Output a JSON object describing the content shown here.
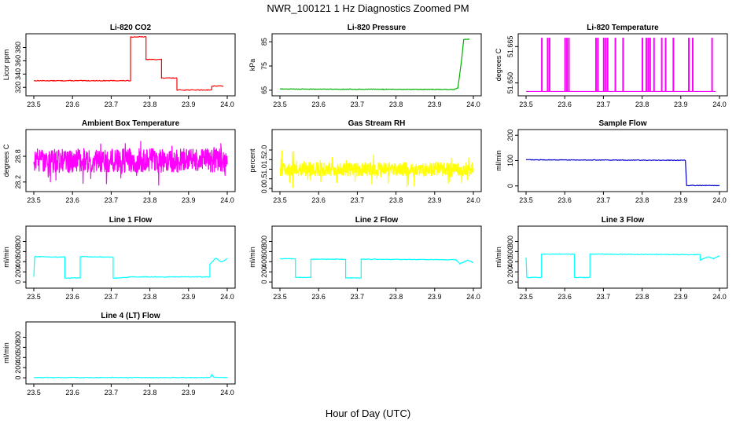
{
  "page": {
    "title": "NWR_100121  1 Hz Diagnostics Zoomed PM",
    "xlabel": "Hour of Day (UTC)"
  },
  "chart_data": [
    {
      "type": "line",
      "title": "Li-820 CO2",
      "ylabel": "Licor ppm",
      "color": "#ff0000",
      "xlim": [
        23.5,
        24.0
      ],
      "ylim": [
        312,
        396
      ],
      "yticks": [
        "320",
        "340",
        "360",
        "380"
      ],
      "xticks": [
        "23.5",
        "23.6",
        "23.7",
        "23.8",
        "23.9",
        "24.0"
      ],
      "xrange": [
        23.5,
        23.99
      ],
      "profile": [
        [
          23.5,
          330
        ],
        [
          23.75,
          330
        ],
        [
          23.75,
          396
        ],
        [
          23.79,
          396
        ],
        [
          23.79,
          362
        ],
        [
          23.83,
          362
        ],
        [
          23.83,
          334
        ],
        [
          23.87,
          334
        ],
        [
          23.87,
          316
        ],
        [
          23.96,
          316
        ],
        [
          23.96,
          322
        ],
        [
          23.99,
          322
        ]
      ]
    },
    {
      "type": "line",
      "title": "Li-820 Pressure",
      "ylabel": "kPa",
      "color": "#00b000",
      "xlim": [
        23.5,
        24.0
      ],
      "ylim": [
        64,
        87
      ],
      "yticks": [
        "65",
        "75",
        "85"
      ],
      "xticks": [
        "23.5",
        "23.6",
        "23.7",
        "23.8",
        "23.9",
        "24.0"
      ],
      "xrange": [
        23.5,
        23.99
      ],
      "profile": [
        [
          23.5,
          65.5
        ],
        [
          23.95,
          65.3
        ],
        [
          23.96,
          66
        ],
        [
          23.97,
          78
        ],
        [
          23.975,
          86
        ],
        [
          23.99,
          86
        ]
      ]
    },
    {
      "type": "line",
      "title": "Li-820 Temperature",
      "ylabel": "degrees C",
      "color": "#ff00ff",
      "xlim": [
        23.5,
        24.0
      ],
      "ylim": [
        51.646,
        51.669
      ],
      "yticks": [
        "51.650",
        "51.665"
      ],
      "xticks": [
        "23.5",
        "23.6",
        "23.7",
        "23.8",
        "23.9",
        "24.0"
      ],
      "xrange": [
        23.5,
        23.99
      ],
      "baseline": 51.6465,
      "spike_top": 51.6685,
      "spikes": [
        23.54,
        23.555,
        23.56,
        23.6,
        23.605,
        23.61,
        23.68,
        23.685,
        23.7,
        23.705,
        23.71,
        23.73,
        23.75,
        23.8,
        23.81,
        23.815,
        23.82,
        23.83,
        23.85,
        23.86,
        23.88,
        23.92,
        23.93,
        23.98
      ]
    },
    {
      "type": "line",
      "title": "Ambient Box Temperature",
      "ylabel": "degrees C",
      "color": "#ff00ff",
      "xlim": [
        23.5,
        24.0
      ],
      "ylim": [
        28.05,
        29.35
      ],
      "yticks": [
        "28.2",
        "28.8"
      ],
      "xticks": [
        "23.5",
        "23.6",
        "23.7",
        "23.8",
        "23.9",
        "24.0"
      ],
      "xrange": [
        23.5,
        24.0
      ],
      "noise": {
        "level": 28.7,
        "band": 0.28,
        "spike": 0.32
      }
    },
    {
      "type": "line",
      "title": "Gas Stream RH",
      "ylabel": "percent",
      "color": "#ffff00",
      "xlim": [
        23.5,
        24.0
      ],
      "ylim": [
        0,
        2.9
      ],
      "yticks": [
        "0.0",
        "0.5",
        "1.0",
        "1.5",
        "2.0"
      ],
      "xticks": [
        "23.5",
        "23.6",
        "23.7",
        "23.8",
        "23.9",
        "24.0"
      ],
      "xrange": [
        23.5,
        24.0
      ],
      "noise": {
        "level": 1.0,
        "band": 0.35,
        "spike": 0.9
      }
    },
    {
      "type": "line",
      "title": "Sample Flow",
      "ylabel": "ml/min",
      "color": "#0000cc",
      "xlim": [
        23.5,
        24.0
      ],
      "ylim": [
        -10,
        210
      ],
      "yticks": [
        "0",
        "100",
        "200"
      ],
      "xticks": [
        "23.5",
        "23.6",
        "23.7",
        "23.8",
        "23.9",
        "24.0"
      ],
      "xrange": [
        23.5,
        24.0
      ],
      "profile": [
        [
          23.5,
          103
        ],
        [
          23.91,
          101
        ],
        [
          23.912,
          100
        ],
        [
          23.915,
          2
        ],
        [
          24.0,
          1
        ]
      ]
    },
    {
      "type": "line",
      "title": "Line 1 Flow",
      "ylabel": "ml/min",
      "color": "#00ffff",
      "xlim": [
        23.5,
        24.0
      ],
      "ylim": [
        -60,
        1040
      ],
      "yticks": [
        "0",
        "200",
        "400",
        "600",
        "800"
      ],
      "xticks": [
        "23.5",
        "23.6",
        "23.7",
        "23.8",
        "23.9",
        "24.0"
      ],
      "xrange": [
        23.5,
        24.0
      ],
      "profile": [
        [
          23.5,
          100
        ],
        [
          23.502,
          500
        ],
        [
          23.58,
          490
        ],
        [
          23.58,
          80
        ],
        [
          23.62,
          80
        ],
        [
          23.62,
          500
        ],
        [
          23.705,
          490
        ],
        [
          23.705,
          70
        ],
        [
          23.75,
          100
        ],
        [
          23.955,
          100
        ],
        [
          23.955,
          350
        ],
        [
          23.97,
          470
        ],
        [
          23.985,
          390
        ],
        [
          24.0,
          460
        ]
      ]
    },
    {
      "type": "line",
      "title": "Line 2 Flow",
      "ylabel": "ml/min",
      "color": "#00ffff",
      "xlim": [
        23.5,
        24.0
      ],
      "ylim": [
        -60,
        1040
      ],
      "yticks": [
        "0",
        "200",
        "400",
        "600",
        "800"
      ],
      "xticks": [
        "23.5",
        "23.6",
        "23.7",
        "23.8",
        "23.9",
        "24.0"
      ],
      "xrange": [
        23.5,
        24.0
      ],
      "profile": [
        [
          23.5,
          460
        ],
        [
          23.54,
          460
        ],
        [
          23.54,
          90
        ],
        [
          23.58,
          90
        ],
        [
          23.58,
          450
        ],
        [
          23.67,
          450
        ],
        [
          23.67,
          80
        ],
        [
          23.71,
          80
        ],
        [
          23.71,
          450
        ],
        [
          23.955,
          440
        ],
        [
          23.965,
          360
        ],
        [
          23.985,
          430
        ],
        [
          24.0,
          380
        ]
      ]
    },
    {
      "type": "line",
      "title": "Line 3 Flow",
      "ylabel": "ml/min",
      "color": "#00ffff",
      "xlim": [
        23.5,
        24.0
      ],
      "ylim": [
        -60,
        1040
      ],
      "yticks": [
        "0",
        "200",
        "400",
        "600",
        "800"
      ],
      "xticks": [
        "23.5",
        "23.6",
        "23.7",
        "23.8",
        "23.9",
        "24.0"
      ],
      "xrange": [
        23.5,
        24.0
      ],
      "profile": [
        [
          23.5,
          480
        ],
        [
          23.502,
          90
        ],
        [
          23.54,
          90
        ],
        [
          23.54,
          550
        ],
        [
          23.625,
          550
        ],
        [
          23.625,
          90
        ],
        [
          23.665,
          90
        ],
        [
          23.665,
          550
        ],
        [
          23.95,
          540
        ],
        [
          23.95,
          430
        ],
        [
          23.97,
          500
        ],
        [
          23.985,
          460
        ],
        [
          24.0,
          520
        ]
      ]
    },
    {
      "type": "line",
      "title": "Line 4 (LT) Flow",
      "ylabel": "ml/min",
      "color": "#00ffff",
      "xlim": [
        23.5,
        24.0
      ],
      "ylim": [
        -60,
        1040
      ],
      "yticks": [
        "0",
        "200",
        "400",
        "600",
        "800"
      ],
      "xticks": [
        "23.5",
        "23.6",
        "23.7",
        "23.8",
        "23.9",
        "24.0"
      ],
      "xrange": [
        23.5,
        24.0
      ],
      "profile": [
        [
          23.5,
          5
        ],
        [
          23.955,
          5
        ],
        [
          23.96,
          60
        ],
        [
          23.965,
          10
        ],
        [
          24.0,
          5
        ]
      ]
    }
  ]
}
